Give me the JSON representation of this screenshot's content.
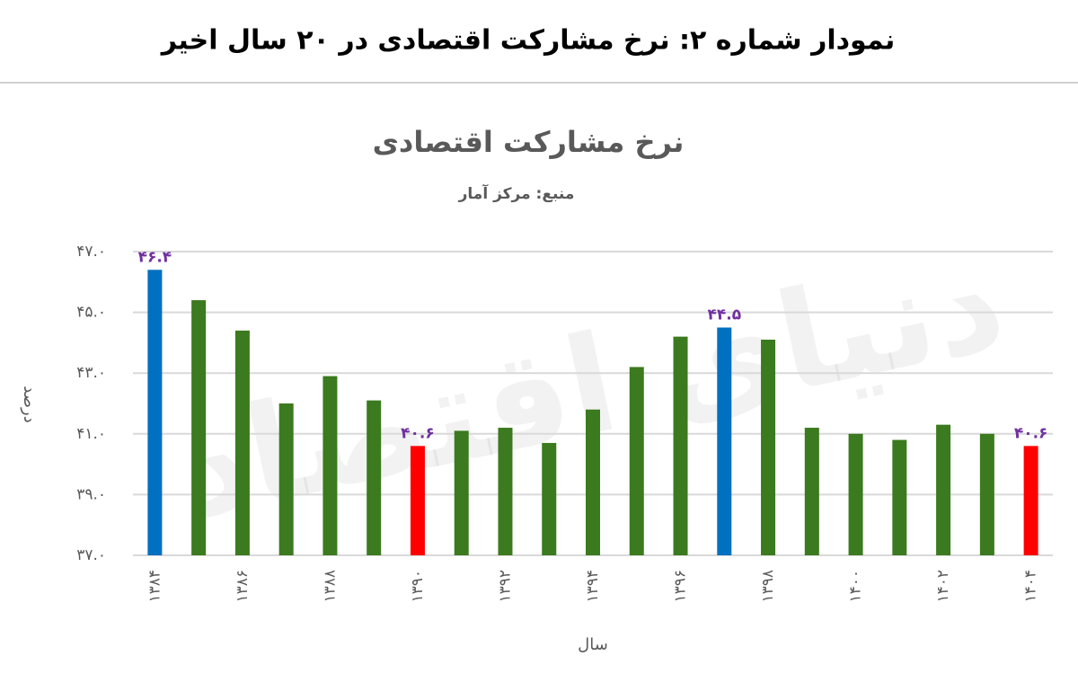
{
  "header": {
    "title": "نمودار شماره ۲: نرخ مشارکت اقتصادی در ۲۰ سال اخیر"
  },
  "chart_data": {
    "type": "bar",
    "title": "نرخ مشارکت اقتصادی",
    "subtitle": "منبع: مرکز آمار",
    "watermark": "دنیای اقتصاد",
    "xlabel": "سال",
    "ylabel": "درصد",
    "categories": [
      "۱۳۸۴",
      null,
      "۱۳۸۶",
      null,
      "۱۳۸۸",
      null,
      "۱۳۹۰",
      null,
      "۱۳۹۲",
      null,
      "۱۳۹۴",
      null,
      "۱۳۹۶",
      null,
      "۱۳۹۸",
      null,
      "۱۴۰۰",
      null,
      "۱۴۰۲",
      null,
      "۱۴۰۴"
    ],
    "values": [
      46.4,
      45.4,
      44.4,
      42.0,
      42.9,
      42.1,
      40.6,
      41.1,
      41.2,
      40.7,
      41.8,
      43.2,
      44.2,
      44.5,
      44.1,
      41.2,
      41.0,
      40.8,
      41.3,
      41.0,
      40.6
    ],
    "value_labels": [
      "۴۶.۴",
      null,
      null,
      null,
      null,
      null,
      "۴۰.۶",
      null,
      null,
      null,
      null,
      null,
      null,
      "۴۴.۵",
      null,
      null,
      null,
      null,
      null,
      null,
      "۴۰.۶"
    ],
    "colors": [
      "#0070c0",
      "#3b7a1e",
      "#3b7a1e",
      "#3b7a1e",
      "#3b7a1e",
      "#3b7a1e",
      "#ff0000",
      "#3b7a1e",
      "#3b7a1e",
      "#3b7a1e",
      "#3b7a1e",
      "#3b7a1e",
      "#3b7a1e",
      "#0070c0",
      "#3b7a1e",
      "#3b7a1e",
      "#3b7a1e",
      "#3b7a1e",
      "#3b7a1e",
      "#3b7a1e",
      "#ff0000"
    ],
    "ylim": [
      37,
      47
    ],
    "yticks": [
      {
        "value": 37,
        "label": "۳۷.۰"
      },
      {
        "value": 39,
        "label": "۳۹.۰"
      },
      {
        "value": 41,
        "label": "۴۱.۰"
      },
      {
        "value": 43,
        "label": "۴۳.۰"
      },
      {
        "value": 45,
        "label": "۴۵.۰"
      },
      {
        "value": 47,
        "label": "۴۷.۰"
      }
    ],
    "grid": true
  }
}
